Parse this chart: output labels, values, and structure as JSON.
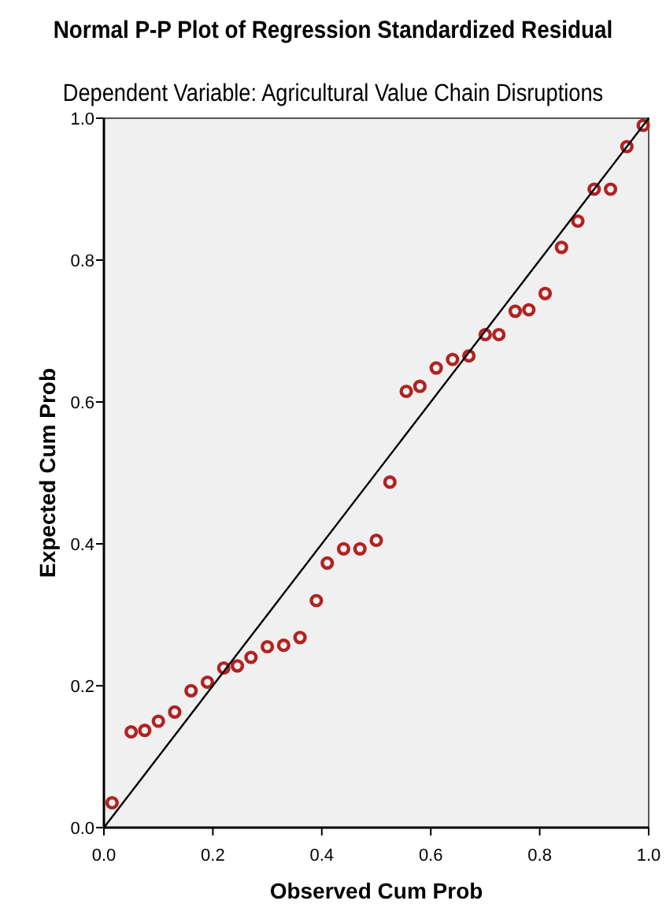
{
  "chart_data": {
    "type": "scatter",
    "title": "Normal P-P Plot of Regression Standardized Residual",
    "subtitle": "Dependent Variable: Agricultural Value Chain Disruptions",
    "xlabel": "Observed Cum Prob",
    "ylabel": "Expected Cum Prob",
    "xlim": [
      0,
      1
    ],
    "ylim": [
      0,
      1
    ],
    "xticks": [
      {
        "value": 0,
        "label": "0.0"
      },
      0.2,
      0.4,
      0.6,
      0.8,
      {
        "value": 1,
        "label": "1.0"
      }
    ],
    "yticks": [
      {
        "value": 0,
        "label": "0.0"
      },
      0.2,
      0.4,
      0.6,
      0.8,
      {
        "value": 1,
        "label": "1.0"
      }
    ],
    "grid": false,
    "series": [
      {
        "marker": "circle",
        "color": "#b22222",
        "x": [
          0.015,
          0.05,
          0.075,
          0.1,
          0.13,
          0.16,
          0.19,
          0.22,
          0.245,
          0.27,
          0.3,
          0.33,
          0.36,
          0.39,
          0.41,
          0.44,
          0.47,
          0.5,
          0.525,
          0.555,
          0.58,
          0.61,
          0.64,
          0.67,
          0.7,
          0.725,
          0.755,
          0.78,
          0.81,
          0.84,
          0.87,
          0.9,
          0.93,
          0.96,
          0.99
        ],
        "values": [
          0.035,
          0.135,
          0.137,
          0.15,
          0.163,
          0.193,
          0.205,
          0.225,
          0.228,
          0.24,
          0.255,
          0.257,
          0.268,
          0.32,
          0.373,
          0.393,
          0.393,
          0.405,
          0.487,
          0.615,
          0.622,
          0.648,
          0.66,
          0.665,
          0.695,
          0.695,
          0.728,
          0.73,
          0.753,
          0.818,
          0.855,
          0.9,
          0.9,
          0.96,
          0.99
        ]
      },
      {
        "type": "line",
        "color": "#000000",
        "x": [
          0,
          1
        ],
        "values": [
          0,
          1
        ]
      }
    ]
  }
}
